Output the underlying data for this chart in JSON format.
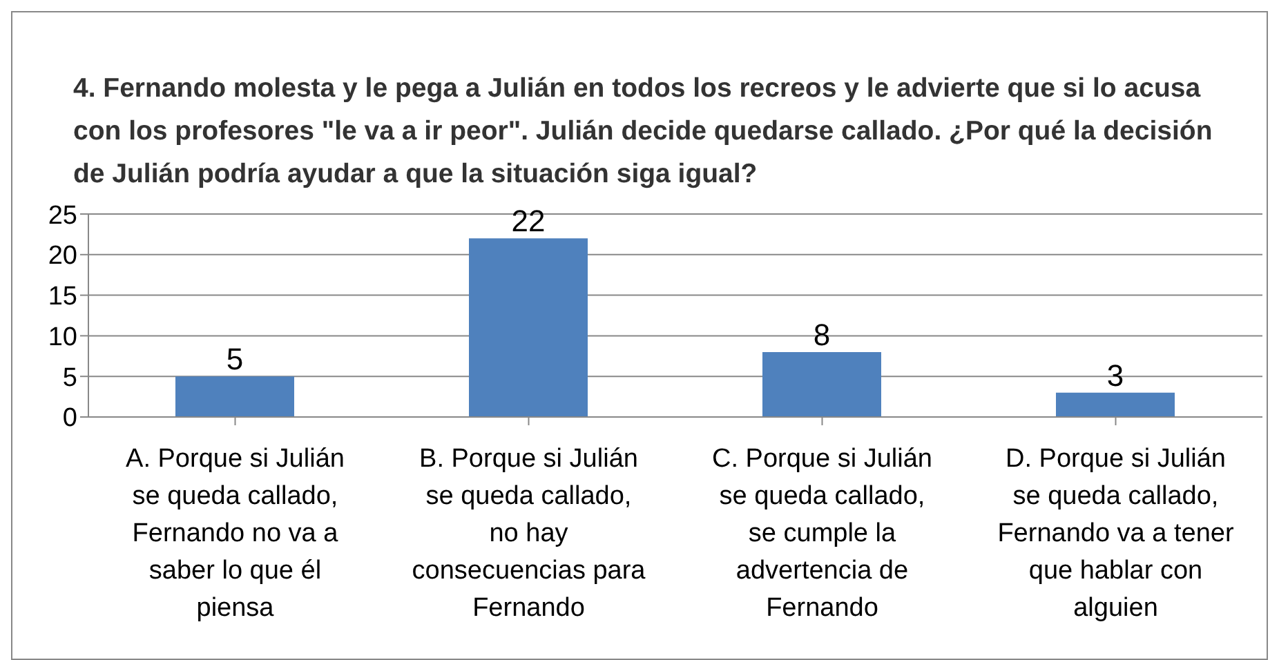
{
  "chart_data": {
    "type": "bar",
    "title": "4. Fernando molesta y le pega a Julián en todos los recreos y le advierte que si lo acusa con los profesores \"le va a ir peor\". Julián decide quedarse callado. ¿Por qué la decisión de Julián podría ayudar a que la situación siga igual?",
    "categories": [
      "A. Porque si Julián se queda callado, Fernando no va a saber lo que él piensa",
      "B. Porque si Julián se queda callado, no hay consecuencias para Fernando",
      "C. Porque si Julián se queda callado, se cumple la advertencia de Fernando",
      "D. Porque si Julián se queda callado, Fernando va a tener que hablar con alguien"
    ],
    "values": [
      5,
      22,
      8,
      3
    ],
    "color": "#4f81bd",
    "ylim": [
      0,
      25
    ],
    "yticks": [
      0,
      5,
      10,
      15,
      20,
      25
    ],
    "grid": "y",
    "data_labels": true
  }
}
